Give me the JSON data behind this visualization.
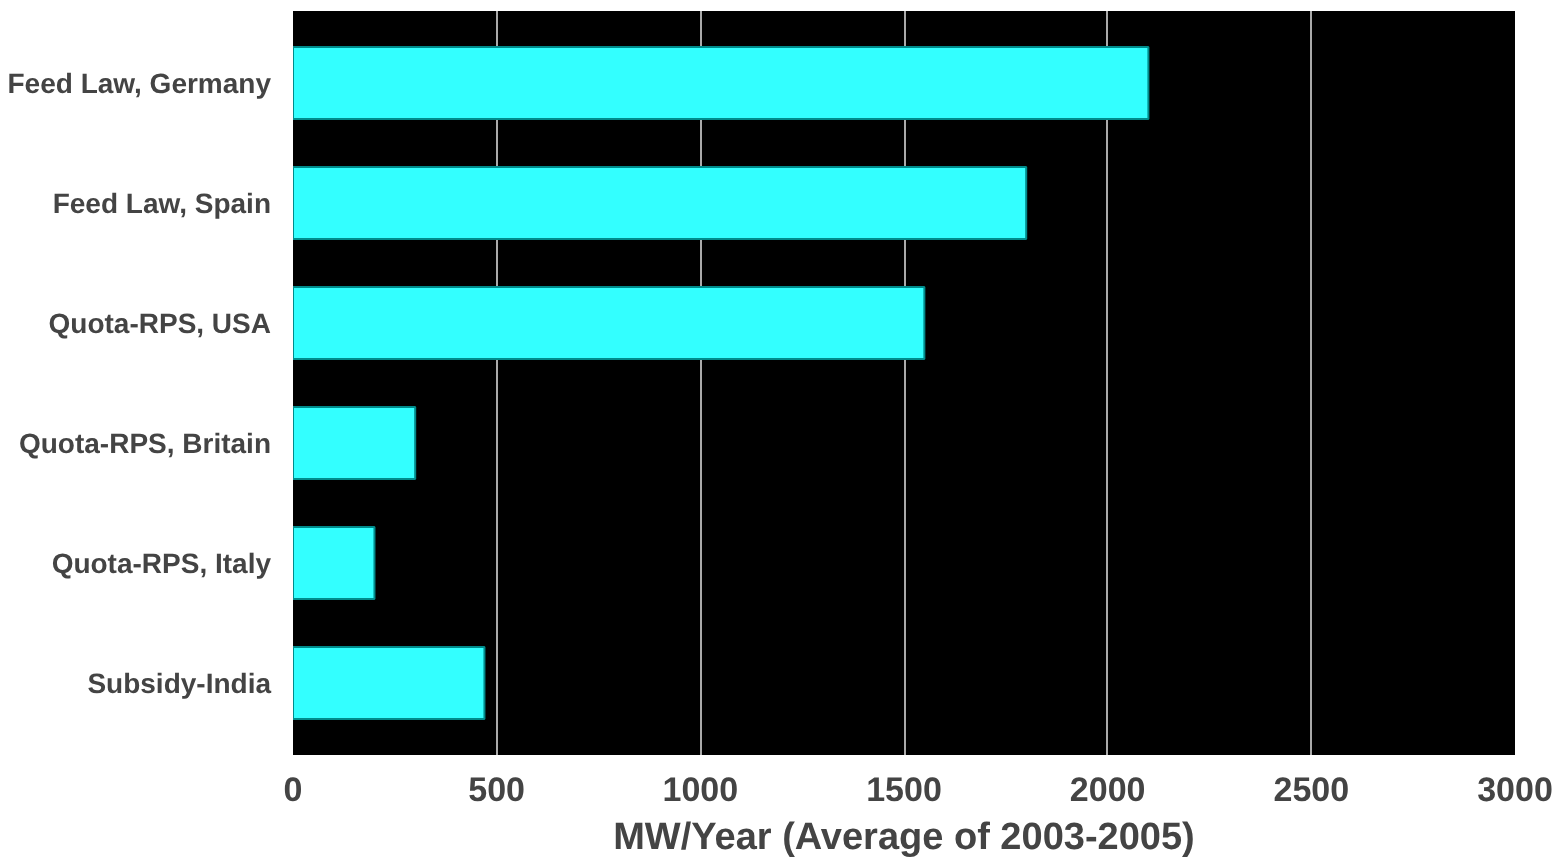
{
  "chart_data": {
    "type": "bar",
    "orientation": "horizontal",
    "xlabel": "MW/Year (Average of 2003-2005)",
    "categories": [
      "Feed Law, Germany",
      "Feed Law, Spain",
      "Quota-RPS, USA",
      "Quota-RPS, Britain",
      "Quota-RPS, Italy",
      "Subsidy-India"
    ],
    "values": [
      2100,
      1800,
      1550,
      300,
      200,
      470
    ],
    "color": "#33ffff",
    "xlim": [
      0,
      3000
    ],
    "xticks": [
      0,
      500,
      1000,
      1500,
      2000,
      2500,
      3000
    ],
    "grid": "x"
  }
}
